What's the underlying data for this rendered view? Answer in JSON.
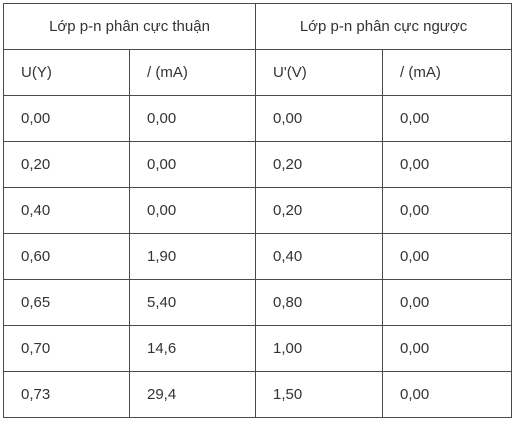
{
  "table": {
    "group_headers": [
      "Lớp p-n phân cực thuận",
      "Lớp p-n phân cực ngược"
    ],
    "column_headers": [
      "U(Y)",
      "/ (mA)",
      "U'(V)",
      "/ (mA)"
    ],
    "rows": [
      [
        "0,00",
        "0,00",
        "0,00",
        "0,00"
      ],
      [
        "0,20",
        "0,00",
        "0,20",
        "0,00"
      ],
      [
        "0,40",
        "0,00",
        "0,20",
        "0,00"
      ],
      [
        "0,60",
        "1,90",
        "0,40",
        "0,00"
      ],
      [
        "0,65",
        "5,40",
        "0,80",
        "0,00"
      ],
      [
        "0,70",
        "14,6",
        "1,00",
        "0,00"
      ],
      [
        "0,73",
        "29,4",
        "1,50",
        "0,00"
      ]
    ]
  }
}
